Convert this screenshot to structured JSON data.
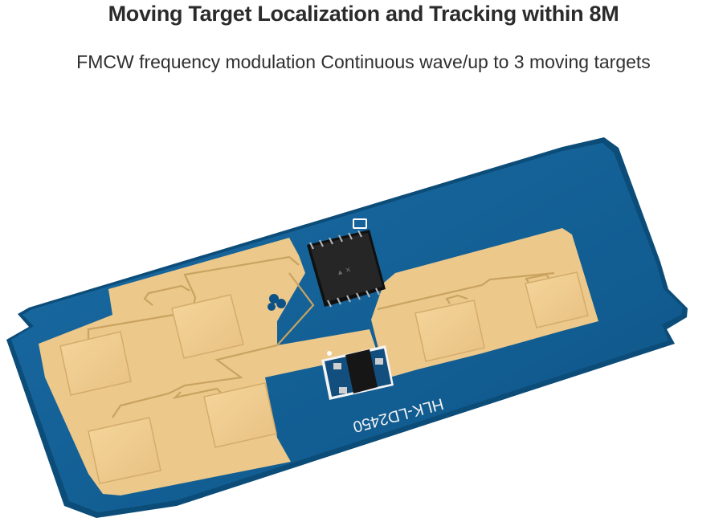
{
  "header": {
    "title": "Moving Target Localization and Tracking within 8M",
    "subtitle": "FMCW frequency modulation Continuous wave/up to 3 moving targets"
  },
  "board": {
    "silkscreen_label": "HLK-LD2450",
    "colors": {
      "pcb": "#125e93",
      "copper": "#eec98c",
      "edge": "#0c4c78",
      "chip": "#1b1b1b"
    }
  }
}
